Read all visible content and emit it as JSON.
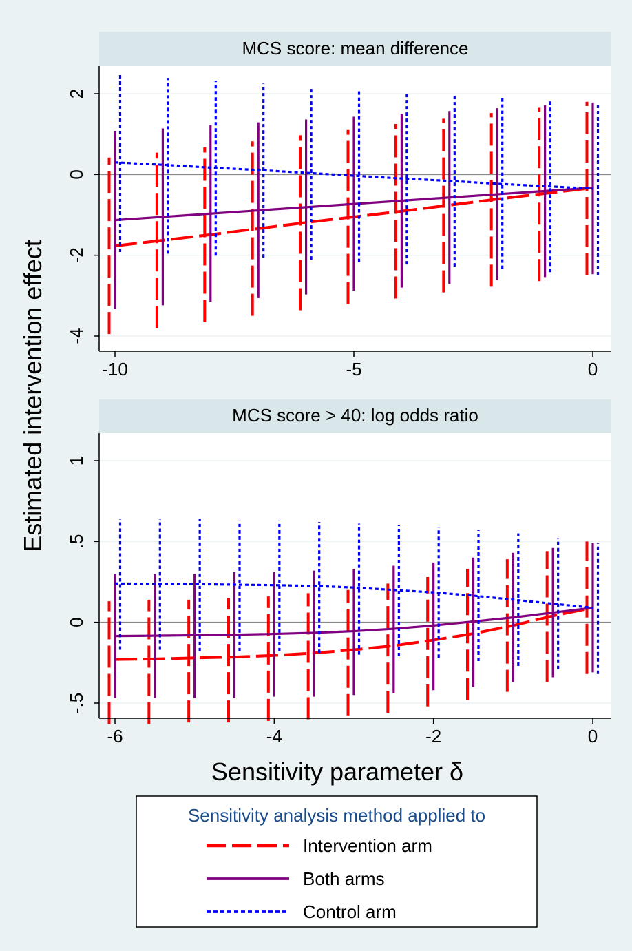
{
  "figure": {
    "ylabel": "Estimated intervention effect",
    "xlabel": "Sensitivity parameter δ",
    "legend": {
      "title": "Sensitivity analysis method applied to",
      "placement": "bottom",
      "items": [
        {
          "label": "Intervention arm",
          "color": "#ff0000",
          "style": "long-dash"
        },
        {
          "label": "Both arms",
          "color": "#800080",
          "style": "solid"
        },
        {
          "label": "Control arm",
          "color": "#0000ff",
          "style": "short-dash"
        }
      ]
    },
    "colors": {
      "background": "#eaf2f3",
      "panel_header": "#d9e6ea",
      "plot": "#ffffff",
      "grid": "#eaf2f3",
      "zero_line": "#888888"
    }
  },
  "chart_data": [
    {
      "type": "line",
      "title": "MCS score: mean difference",
      "xlim": [
        -10,
        0
      ],
      "ylim": [
        -4,
        2
      ],
      "xticks": [
        -10,
        -5,
        0
      ],
      "xtick_labels": [
        "-10",
        "-5",
        "0"
      ],
      "yticks": [
        -4,
        -2,
        0,
        2
      ],
      "ytick_labels": [
        "-4",
        "-2",
        "0",
        "2"
      ],
      "grid": true,
      "reference_line_y": 0,
      "x": [
        -10,
        -9,
        -8,
        -7,
        -6,
        -5,
        -4,
        -3,
        -2,
        -1,
        0
      ],
      "series": [
        {
          "name": "Intervention arm",
          "estimate": [
            -1.77,
            -1.63,
            -1.49,
            -1.34,
            -1.19,
            -1.05,
            -0.91,
            -0.76,
            -0.61,
            -0.47,
            -0.33
          ],
          "lower": [
            -3.95,
            -3.8,
            -3.65,
            -3.5,
            -3.36,
            -3.21,
            -3.07,
            -2.92,
            -2.78,
            -2.64,
            -2.5
          ],
          "upper": [
            0.42,
            0.54,
            0.67,
            0.82,
            0.97,
            1.1,
            1.25,
            1.38,
            1.52,
            1.65,
            1.8
          ]
        },
        {
          "name": "Both arms",
          "estimate": [
            -1.13,
            -1.05,
            -0.97,
            -0.89,
            -0.81,
            -0.73,
            -0.65,
            -0.57,
            -0.49,
            -0.41,
            -0.33
          ],
          "lower": [
            -3.33,
            -3.24,
            -3.15,
            -3.06,
            -2.97,
            -2.88,
            -2.8,
            -2.71,
            -2.62,
            -2.54,
            -2.47
          ],
          "upper": [
            1.08,
            1.14,
            1.22,
            1.29,
            1.36,
            1.43,
            1.5,
            1.57,
            1.64,
            1.71,
            1.78
          ]
        },
        {
          "name": "Control arm",
          "estimate": [
            0.3,
            0.24,
            0.17,
            0.11,
            0.04,
            -0.03,
            -0.1,
            -0.16,
            -0.23,
            -0.29,
            -0.35
          ],
          "lower": [
            -1.92,
            -1.96,
            -2.01,
            -2.06,
            -2.11,
            -2.17,
            -2.23,
            -2.28,
            -2.34,
            -2.42,
            -2.5
          ],
          "upper": [
            2.46,
            2.39,
            2.32,
            2.25,
            2.18,
            2.11,
            2.04,
            1.97,
            1.91,
            1.84,
            1.78
          ]
        }
      ]
    },
    {
      "type": "line",
      "title": "MCS score > 40: log odds ratio",
      "xlim": [
        -6,
        0
      ],
      "ylim": [
        -0.5,
        1
      ],
      "xticks": [
        -6,
        -4,
        -2,
        0
      ],
      "xtick_labels": [
        "-6",
        "-4",
        "-2",
        "0"
      ],
      "yticks": [
        -0.5,
        0,
        0.5,
        1
      ],
      "ytick_labels": [
        "-.5",
        "0",
        ".5",
        "1"
      ],
      "grid": true,
      "reference_line_y": 0,
      "x": [
        -6,
        -5.5,
        -5,
        -4.5,
        -4,
        -3.5,
        -3,
        -2.5,
        -2,
        -1.5,
        -1,
        -0.5,
        0
      ],
      "series": [
        {
          "name": "Intervention arm",
          "estimate": [
            -0.23,
            -0.227,
            -0.22,
            -0.215,
            -0.205,
            -0.19,
            -0.17,
            -0.145,
            -0.11,
            -0.07,
            -0.02,
            0.04,
            0.09
          ],
          "lower": [
            -0.63,
            -0.63,
            -0.62,
            -0.62,
            -0.61,
            -0.6,
            -0.58,
            -0.56,
            -0.52,
            -0.48,
            -0.43,
            -0.37,
            -0.32
          ],
          "upper": [
            0.13,
            0.14,
            0.14,
            0.15,
            0.16,
            0.18,
            0.2,
            0.24,
            0.28,
            0.33,
            0.39,
            0.44,
            0.5
          ]
        },
        {
          "name": "Both arms",
          "estimate": [
            -0.085,
            -0.083,
            -0.08,
            -0.077,
            -0.072,
            -0.065,
            -0.055,
            -0.04,
            -0.02,
            0.005,
            0.03,
            0.06,
            0.09
          ],
          "lower": [
            -0.47,
            -0.47,
            -0.47,
            -0.47,
            -0.46,
            -0.46,
            -0.45,
            -0.44,
            -0.42,
            -0.4,
            -0.37,
            -0.34,
            -0.31
          ],
          "upper": [
            0.3,
            0.3,
            0.3,
            0.31,
            0.31,
            0.32,
            0.33,
            0.35,
            0.37,
            0.4,
            0.43,
            0.46,
            0.49
          ]
        },
        {
          "name": "Control arm",
          "estimate": [
            0.24,
            0.238,
            0.236,
            0.233,
            0.23,
            0.225,
            0.215,
            0.2,
            0.185,
            0.165,
            0.14,
            0.115,
            0.09
          ],
          "lower": [
            -0.17,
            -0.17,
            -0.18,
            -0.18,
            -0.18,
            -0.19,
            -0.2,
            -0.21,
            -0.22,
            -0.24,
            -0.27,
            -0.29,
            -0.32
          ],
          "upper": [
            0.64,
            0.64,
            0.64,
            0.63,
            0.63,
            0.62,
            0.61,
            0.6,
            0.59,
            0.57,
            0.55,
            0.52,
            0.49
          ]
        }
      ]
    }
  ]
}
